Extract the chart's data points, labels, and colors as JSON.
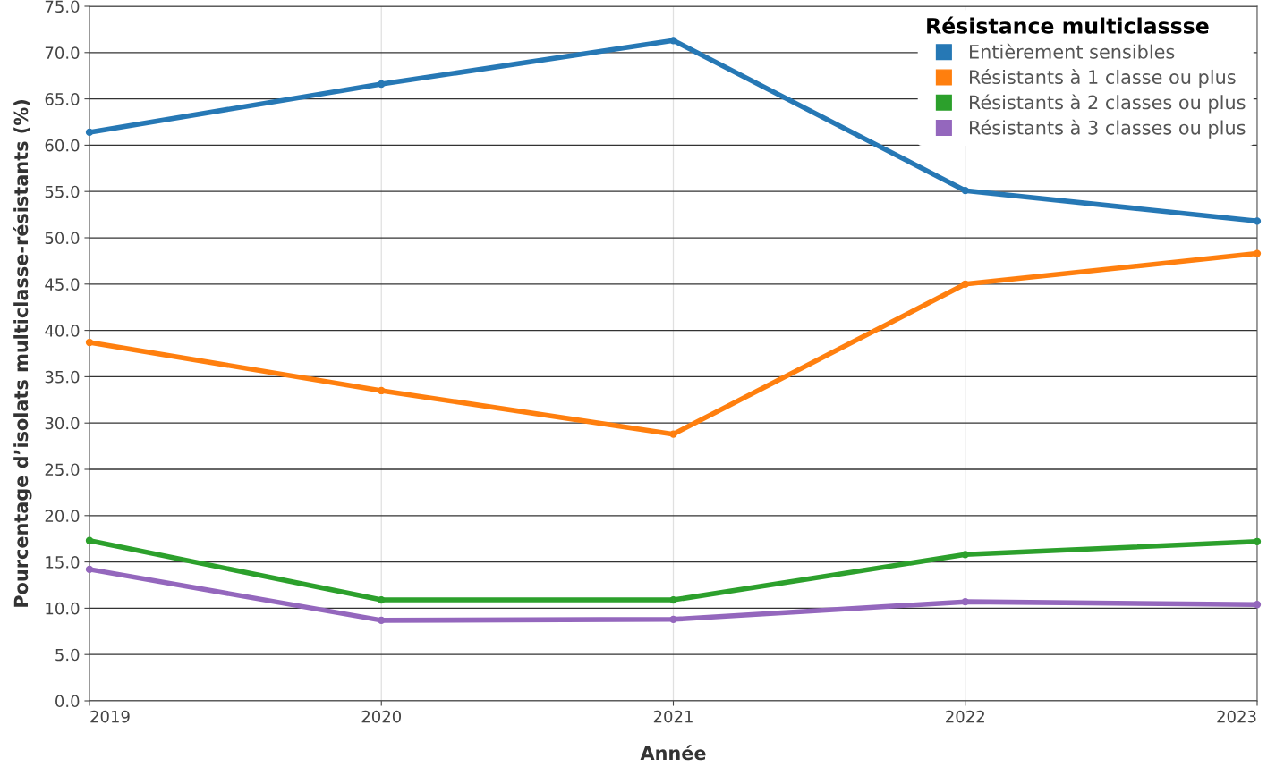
{
  "chart_data": {
    "type": "line",
    "xlabel": "Année",
    "ylabel": "Pourcentage d’isolats multiclasse-résistants (%)",
    "legend_title": "Résistance multiclassse",
    "x": [
      2019,
      2020,
      2021,
      2022,
      2023
    ],
    "series": [
      {
        "name": "Entièrement sensibles",
        "color": "#2678b5",
        "values": [
          61.4,
          66.6,
          71.3,
          55.1,
          51.8
        ]
      },
      {
        "name": "Résistants à 1 classe ou plus",
        "color": "#ff7f0e",
        "values": [
          38.7,
          33.5,
          28.8,
          45.0,
          48.3
        ]
      },
      {
        "name": "Résistants à 2 classes ou plus",
        "color": "#2ca02c",
        "values": [
          17.3,
          10.9,
          10.9,
          15.8,
          17.2
        ]
      },
      {
        "name": "Résistants à 3 classes ou plus",
        "color": "#9467bd",
        "values": [
          14.2,
          8.7,
          8.8,
          10.7,
          10.4
        ]
      }
    ],
    "xlim": [
      2019,
      2023
    ],
    "xticks": [
      2019,
      2020,
      2021,
      2022,
      2023
    ],
    "ylim": [
      0,
      75
    ],
    "yticks": [
      {
        "value": 0,
        "label": "0.0"
      },
      {
        "value": 5,
        "label": "5.0"
      },
      {
        "value": 10,
        "label": "10.0"
      },
      {
        "value": 15,
        "label": "15.0"
      },
      {
        "value": 20,
        "label": "20.0"
      },
      {
        "value": 25,
        "label": "25.0"
      },
      {
        "value": 30,
        "label": "30.0"
      },
      {
        "value": 35,
        "label": "35.0"
      },
      {
        "value": 40,
        "label": "40.0"
      },
      {
        "value": 45,
        "label": "45.0"
      },
      {
        "value": 50,
        "label": "50.0"
      },
      {
        "value": 55,
        "label": "55.0"
      },
      {
        "value": 60,
        "label": "60.0"
      },
      {
        "value": 65,
        "label": "65.0"
      },
      {
        "value": 70,
        "label": "70.0"
      },
      {
        "value": 75,
        "label": "75.0"
      }
    ],
    "grid": true,
    "legend": "top right",
    "marker": "circle",
    "line_style": "solid"
  }
}
